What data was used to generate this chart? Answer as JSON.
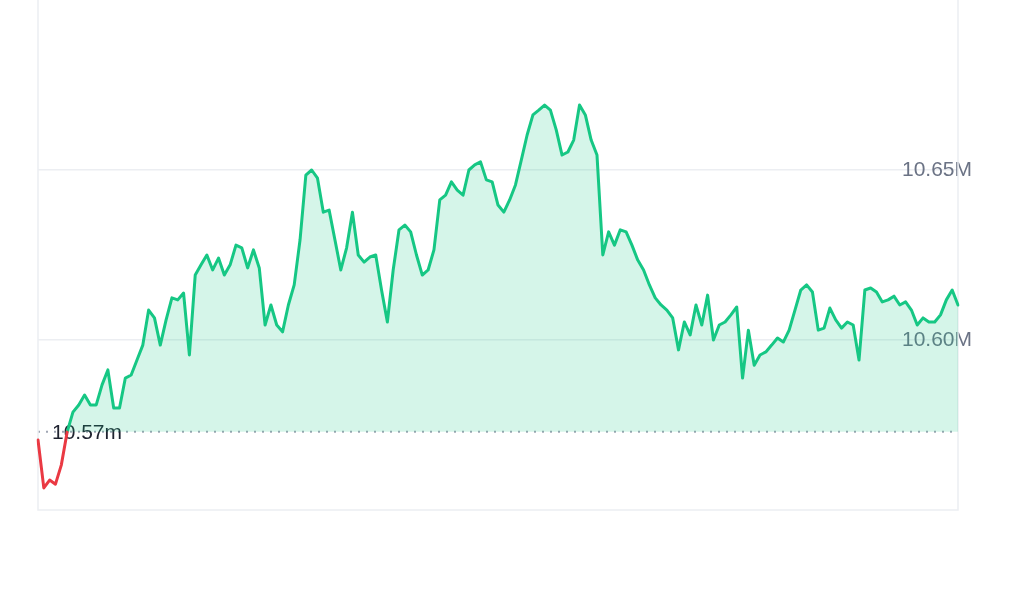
{
  "chart_data": {
    "type": "area",
    "categories": [
      null,
      null,
      null,
      null,
      null,
      null,
      null,
      null,
      null,
      null,
      null,
      null,
      null,
      null,
      null,
      null,
      null,
      null,
      null,
      null,
      null,
      null,
      null,
      null,
      null,
      null,
      null,
      null,
      null,
      null,
      null,
      null,
      null,
      null,
      null,
      null,
      null,
      null,
      null,
      null,
      null,
      null,
      null,
      null,
      null,
      null,
      null,
      null,
      null,
      null,
      null,
      null,
      null,
      null,
      null,
      null,
      null,
      null,
      null,
      null,
      null,
      null,
      null,
      null,
      null,
      null,
      null,
      null,
      null,
      null,
      null,
      null,
      null,
      null,
      null,
      null,
      null,
      null,
      null,
      null,
      null,
      null,
      null,
      null,
      null,
      null,
      null,
      null,
      null,
      null,
      null,
      null,
      null,
      null,
      null,
      null,
      null,
      null,
      null,
      null,
      null,
      null,
      null,
      null,
      null,
      null,
      null,
      null,
      null,
      null,
      null,
      null,
      null,
      null,
      null,
      null,
      null,
      null,
      null,
      null,
      null,
      null,
      null,
      null,
      null,
      null,
      null,
      null,
      null,
      null,
      null,
      null,
      null,
      null,
      null,
      null,
      null,
      null,
      null,
      null,
      null,
      null,
      null,
      null,
      null,
      null,
      null,
      null,
      null,
      null,
      null,
      null,
      null,
      null,
      null,
      null,
      null,
      null,
      null
    ],
    "series": [
      {
        "type": "line",
        "color": "#ea3943",
        "values": [
          10.5706,
          10.5565,
          10.5588,
          10.5576,
          10.5632,
          10.5729,
          null,
          null,
          null,
          null,
          null,
          null,
          null,
          null,
          null,
          null,
          null,
          null,
          null,
          null,
          null,
          null,
          null,
          null,
          null,
          null,
          null,
          null,
          null,
          null,
          null,
          null,
          null,
          null,
          null,
          null,
          null,
          null,
          null,
          null,
          null,
          null,
          null,
          null,
          null,
          null,
          null,
          null,
          null,
          null,
          null,
          null,
          null,
          null,
          null,
          null,
          null,
          null,
          null,
          null,
          null,
          null,
          null,
          null,
          null,
          null,
          null,
          null,
          null,
          null,
          null,
          null,
          null,
          null,
          null,
          null,
          null,
          null,
          null,
          null,
          null,
          null,
          null,
          null,
          null,
          null,
          null,
          null,
          null,
          null,
          null,
          null,
          null,
          null,
          null,
          null,
          null,
          null,
          null,
          null,
          null,
          null,
          null,
          null,
          null,
          null,
          null,
          null,
          null,
          null,
          null,
          null,
          null,
          null,
          null,
          null,
          null,
          null,
          null,
          null,
          null,
          null,
          null,
          null,
          null,
          null,
          null,
          null,
          null,
          null,
          null,
          null,
          null,
          null,
          null,
          null,
          null,
          null,
          null,
          null,
          null,
          null,
          null,
          null,
          null,
          null,
          null,
          null,
          null,
          null,
          null,
          null,
          null,
          null,
          null,
          null,
          null,
          null,
          null
        ]
      },
      {
        "color": "#16c784",
        "values": [
          null,
          null,
          null,
          null,
          null,
          10.5729,
          10.5788,
          10.5809,
          10.5838,
          10.5809,
          10.5809,
          10.5868,
          10.5912,
          10.58,
          10.58,
          10.5888,
          10.5897,
          10.5941,
          10.5985,
          10.6088,
          10.6065,
          10.5985,
          10.6059,
          10.6124,
          10.6118,
          10.6138,
          10.5956,
          10.6191,
          10.6221,
          10.625,
          10.6206,
          10.6241,
          10.6191,
          10.6221,
          10.6279,
          10.6271,
          10.6212,
          10.6265,
          10.6212,
          10.6044,
          10.6103,
          10.6044,
          10.6024,
          10.6103,
          10.6162,
          10.6294,
          10.6485,
          10.65,
          10.6476,
          10.6376,
          10.6382,
          10.6294,
          10.6206,
          10.6271,
          10.6376,
          10.625,
          10.6229,
          10.6244,
          10.625,
          10.6147,
          10.6053,
          10.6206,
          10.6324,
          10.6338,
          10.6318,
          10.625,
          10.6191,
          10.6206,
          10.6265,
          10.6412,
          10.6426,
          10.6465,
          10.6441,
          10.6426,
          10.65,
          10.6515,
          10.6524,
          10.6471,
          10.6465,
          10.6397,
          10.6376,
          10.6412,
          10.6456,
          10.6529,
          10.6603,
          10.6662,
          10.6676,
          10.6691,
          10.6676,
          10.6618,
          10.6544,
          10.6553,
          10.6588,
          10.6691,
          10.6662,
          10.6588,
          10.6544,
          10.625,
          10.6318,
          10.6279,
          10.6324,
          10.6318,
          10.6279,
          10.6235,
          10.6206,
          10.6162,
          10.6124,
          10.6103,
          10.6088,
          10.6065,
          10.5971,
          10.6053,
          10.6015,
          10.6103,
          10.6044,
          10.6132,
          10.6,
          10.6044,
          10.6053,
          10.6074,
          10.6097,
          10.5888,
          10.6029,
          10.5926,
          10.5956,
          10.5965,
          10.5985,
          10.6006,
          10.5994,
          10.6029,
          10.6088,
          10.6147,
          10.6162,
          10.6141,
          10.6029,
          10.6035,
          10.6094,
          10.6059,
          10.6035,
          10.6053,
          10.6044,
          10.5941,
          10.6147,
          10.6153,
          10.6141,
          10.6112,
          10.6118,
          10.6129,
          10.6103,
          10.6112,
          10.6088,
          10.6044,
          10.6065,
          10.6053,
          10.6053,
          10.6074,
          10.6118,
          10.6147,
          10.6103
        ]
      }
    ],
    "ylim": [
      10.55,
      10.7
    ],
    "yticks": [
      {
        "value": 10.6,
        "label": "10.60M"
      },
      {
        "value": 10.65,
        "label": "10.65M"
      }
    ],
    "tick_labels": "y",
    "grid": "y",
    "legend": false,
    "ref_lines": [
      {
        "axis": "y",
        "value": 10.573,
        "label": "10.57m",
        "color": "#a0a6b4",
        "line_style": "dotted"
      }
    ]
  }
}
